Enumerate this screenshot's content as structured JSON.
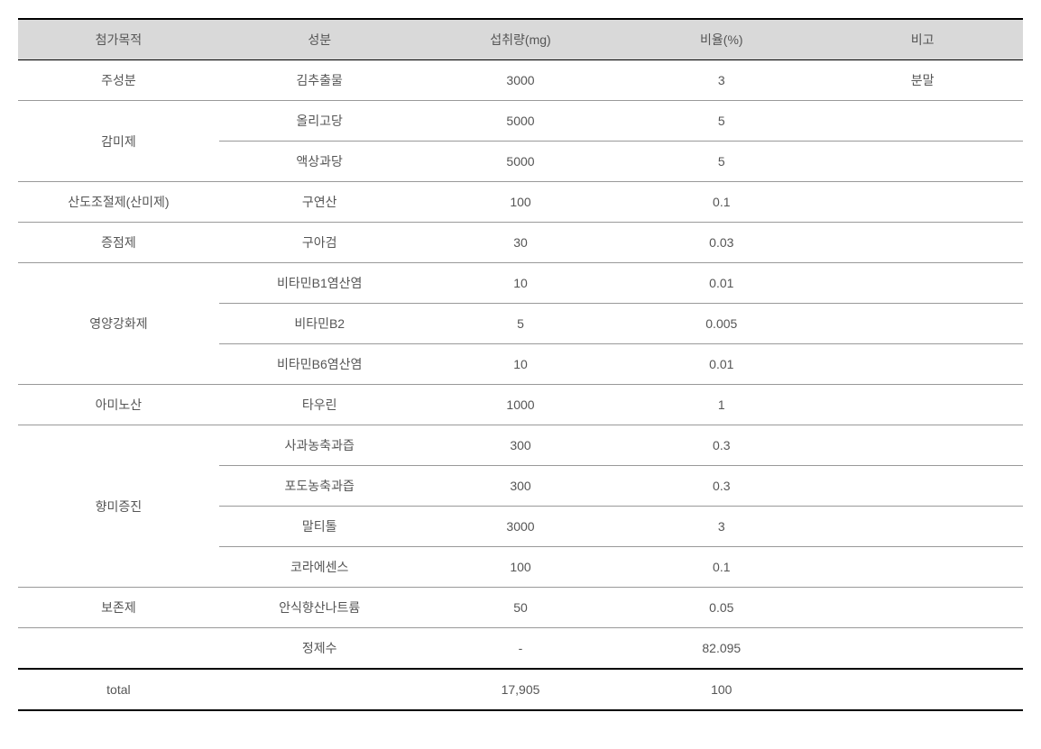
{
  "table": {
    "headers": {
      "purpose": "첨가목적",
      "ingredient": "성분",
      "intake": "섭취량(mg)",
      "ratio": "비율(%)",
      "note": "비고"
    },
    "groups": [
      {
        "purpose": "주성분",
        "rows": [
          {
            "ingredient": "김추출물",
            "intake": "3000",
            "ratio": "3",
            "note": "분말"
          }
        ]
      },
      {
        "purpose": "감미제",
        "rows": [
          {
            "ingredient": "올리고당",
            "intake": "5000",
            "ratio": "5",
            "note": ""
          },
          {
            "ingredient": "액상과당",
            "intake": "5000",
            "ratio": "5",
            "note": ""
          }
        ]
      },
      {
        "purpose": "산도조절제(산미제)",
        "rows": [
          {
            "ingredient": "구연산",
            "intake": "100",
            "ratio": "0.1",
            "note": ""
          }
        ]
      },
      {
        "purpose": "증점제",
        "rows": [
          {
            "ingredient": "구아검",
            "intake": "30",
            "ratio": "0.03",
            "note": ""
          }
        ]
      },
      {
        "purpose": "영양강화제",
        "rows": [
          {
            "ingredient": "비타민B1염산염",
            "intake": "10",
            "ratio": "0.01",
            "note": ""
          },
          {
            "ingredient": "비타민B2",
            "intake": "5",
            "ratio": "0.005",
            "note": ""
          },
          {
            "ingredient": "비타민B6염산염",
            "intake": "10",
            "ratio": "0.01",
            "note": ""
          }
        ]
      },
      {
        "purpose": "아미노산",
        "rows": [
          {
            "ingredient": "타우린",
            "intake": "1000",
            "ratio": "1",
            "note": ""
          }
        ]
      },
      {
        "purpose": "향미증진",
        "rows": [
          {
            "ingredient": "사과농축과즙",
            "intake": "300",
            "ratio": "0.3",
            "note": ""
          },
          {
            "ingredient": "포도농축과즙",
            "intake": "300",
            "ratio": "0.3",
            "note": ""
          },
          {
            "ingredient": "말티톨",
            "intake": "3000",
            "ratio": "3",
            "note": ""
          },
          {
            "ingredient": "코라에센스",
            "intake": "100",
            "ratio": "0.1",
            "note": ""
          }
        ]
      },
      {
        "purpose": "보존제",
        "rows": [
          {
            "ingredient": "안식향산나트륨",
            "intake": "50",
            "ratio": "0.05",
            "note": ""
          }
        ]
      },
      {
        "purpose": "",
        "rows": [
          {
            "ingredient": "정제수",
            "intake": "-",
            "ratio": "82.095",
            "note": ""
          }
        ]
      }
    ],
    "total": {
      "label": "total",
      "ingredient": "",
      "intake": "17,905",
      "ratio": "100",
      "note": ""
    }
  },
  "styles": {
    "header_bg": "#d9d9d9",
    "border_heavy": "#000000",
    "border_light": "#999999",
    "text_color": "#555555",
    "font_size": 14,
    "row_padding": 12
  }
}
